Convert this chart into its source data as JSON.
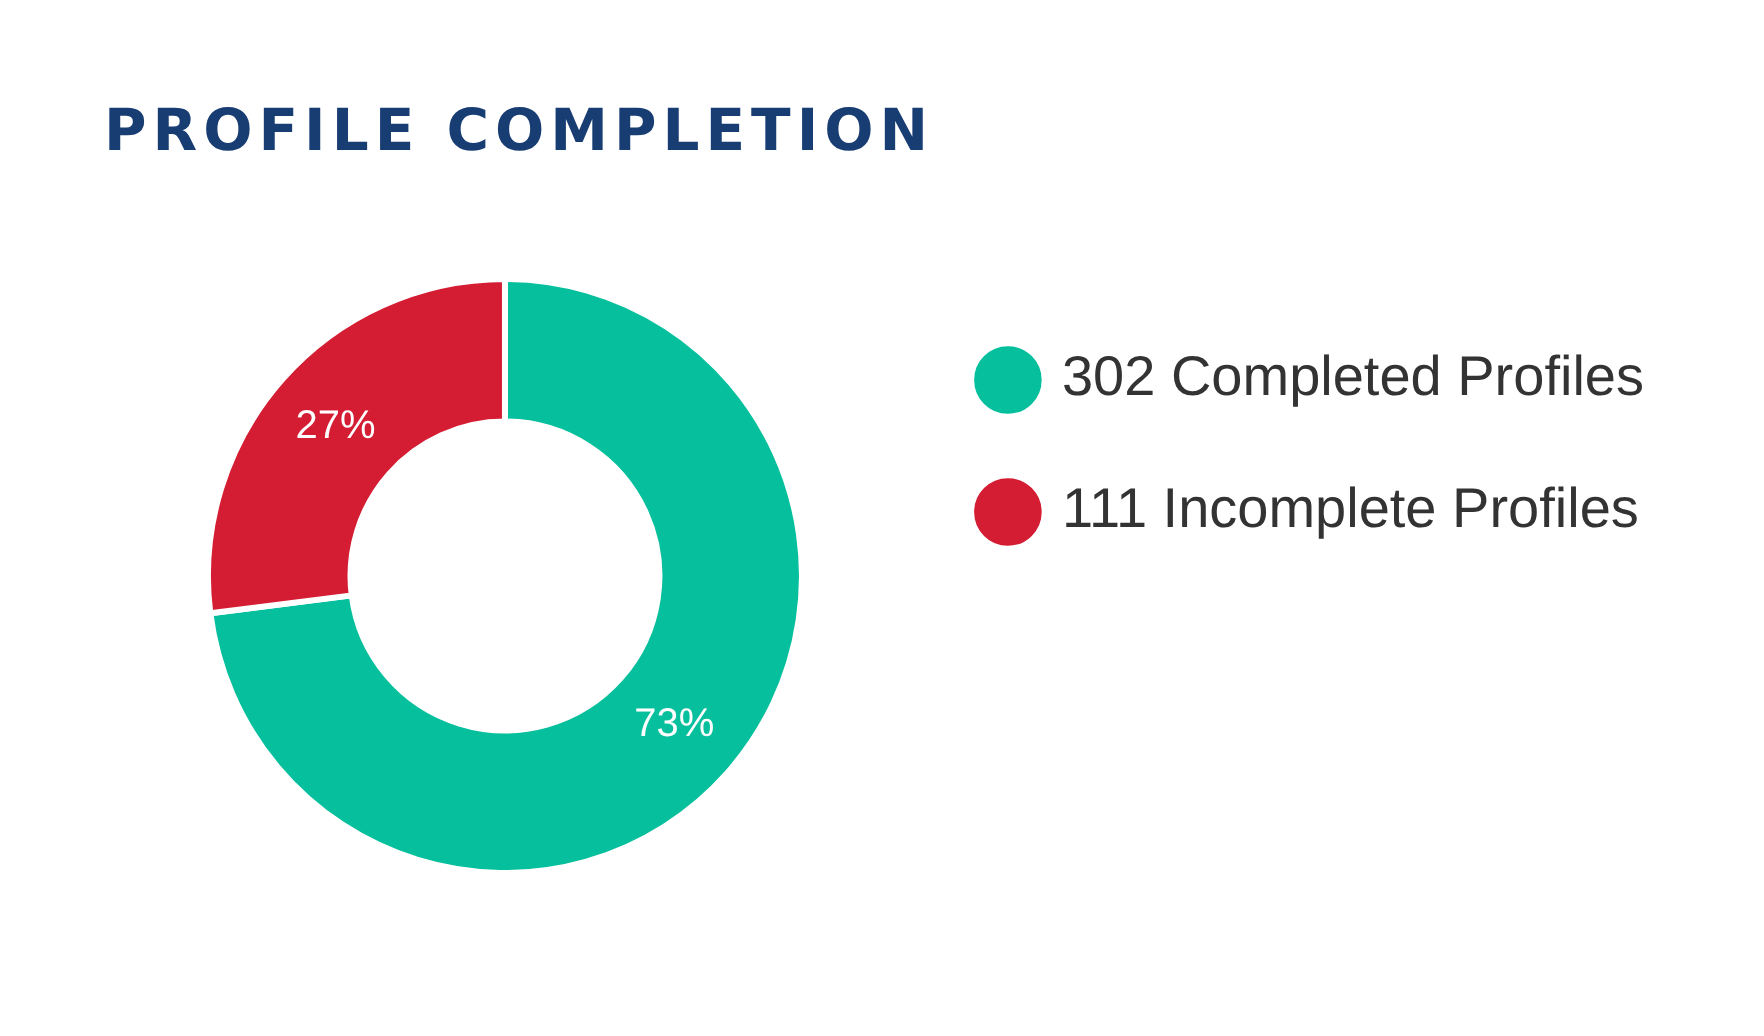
{
  "chart_data": {
    "type": "donut",
    "title": "PROFILE COMPLETION",
    "categories": [
      "302 Completed Profiles",
      "111 Incomplete Profiles"
    ],
    "values": [
      73,
      27
    ],
    "colors": [
      "#06bf9c",
      "#d41c33"
    ],
    "value_labels": [
      "73%",
      "27%"
    ],
    "legend": "right"
  }
}
